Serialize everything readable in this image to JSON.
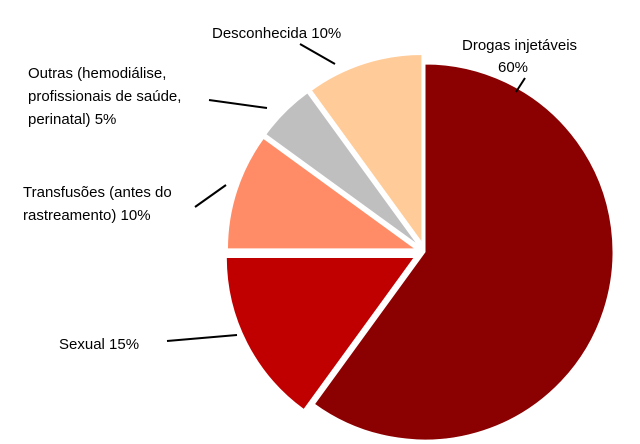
{
  "chart_data": {
    "type": "pie",
    "title": "",
    "legend": "none",
    "slices": [
      {
        "label": "Drogas injetáveis",
        "value": 60,
        "value_label": "60%",
        "color": "#8b0000",
        "label_lines": [
          "Drogas injetáveis",
          "60%"
        ]
      },
      {
        "label": "Sexual",
        "value": 15,
        "value_label": "15%",
        "color": "#c00000",
        "label_lines": [
          "Sexual   15%"
        ]
      },
      {
        "label": "Transfusões (antes do rastreamento)",
        "value": 10,
        "value_label": "10%",
        "color": "#ff8c66",
        "label_lines": [
          "Transfusões (antes do",
          "rastreamento)      10%"
        ]
      },
      {
        "label": "Outras (hemodiálise, profissionais de saúde, perinatal)",
        "value": 5,
        "value_label": "5%",
        "color": "#bfbfbf",
        "label_lines": [
          "Outras (hemodiálise,",
          "profissionais de saúde,",
          "perinatal)          5%"
        ]
      },
      {
        "label": "Desconhecida",
        "value": 10,
        "value_label": "10%",
        "color": "#ffcc99",
        "label_lines": [
          "Desconhecida 10%"
        ]
      }
    ]
  }
}
